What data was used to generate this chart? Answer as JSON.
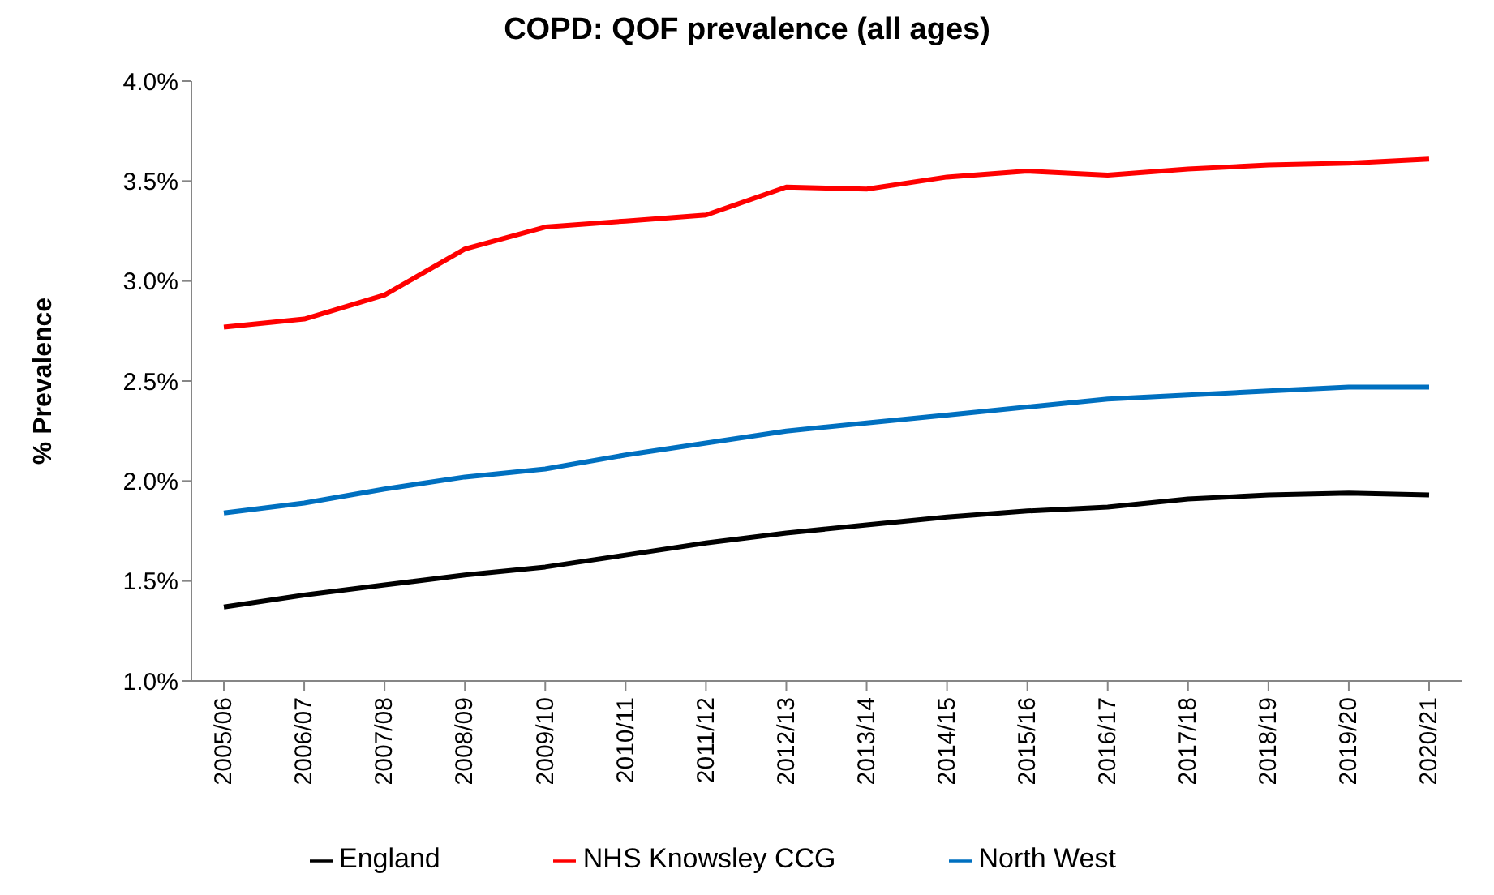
{
  "chart_data": {
    "type": "line",
    "title": "COPD: QOF prevalence (all ages)",
    "ylabel": "% Prevalence",
    "categories": [
      "2005/06",
      "2006/07",
      "2007/08",
      "2008/09",
      "2009/10",
      "2010/11",
      "2011/12",
      "2012/13",
      "2013/14",
      "2014/15",
      "2015/16",
      "2016/17",
      "2017/18",
      "2018/19",
      "2019/20",
      "2020/21"
    ],
    "series": [
      {
        "name": "NHS Knowsley CCG",
        "color": "#ff0000",
        "values": [
          2.77,
          2.81,
          2.93,
          3.16,
          3.27,
          3.3,
          3.33,
          3.47,
          3.46,
          3.52,
          3.55,
          3.53,
          3.56,
          3.58,
          3.59,
          3.61
        ]
      },
      {
        "name": "England",
        "color": "#000000",
        "values": [
          1.37,
          1.43,
          1.48,
          1.53,
          1.57,
          1.63,
          1.69,
          1.74,
          1.78,
          1.82,
          1.85,
          1.87,
          1.91,
          1.93,
          1.94,
          1.93
        ]
      },
      {
        "name": "North West",
        "color": "#0070c0",
        "values": [
          1.84,
          1.89,
          1.96,
          2.02,
          2.06,
          2.13,
          2.19,
          2.25,
          2.29,
          2.33,
          2.37,
          2.41,
          2.43,
          2.45,
          2.47,
          2.47
        ]
      }
    ],
    "ylim": [
      1.0,
      4.0
    ],
    "yticks": [
      {
        "value": 1.0,
        "label": "1.0%"
      },
      {
        "value": 1.5,
        "label": "1.5%"
      },
      {
        "value": 2.0,
        "label": "2.0%"
      },
      {
        "value": 2.5,
        "label": "2.5%"
      },
      {
        "value": 3.0,
        "label": "3.0%"
      },
      {
        "value": 3.5,
        "label": "3.5%"
      },
      {
        "value": 4.0,
        "label": "4.0%"
      }
    ],
    "grid": false,
    "legend": "bottom",
    "marker": "none",
    "line_style": "solid"
  }
}
